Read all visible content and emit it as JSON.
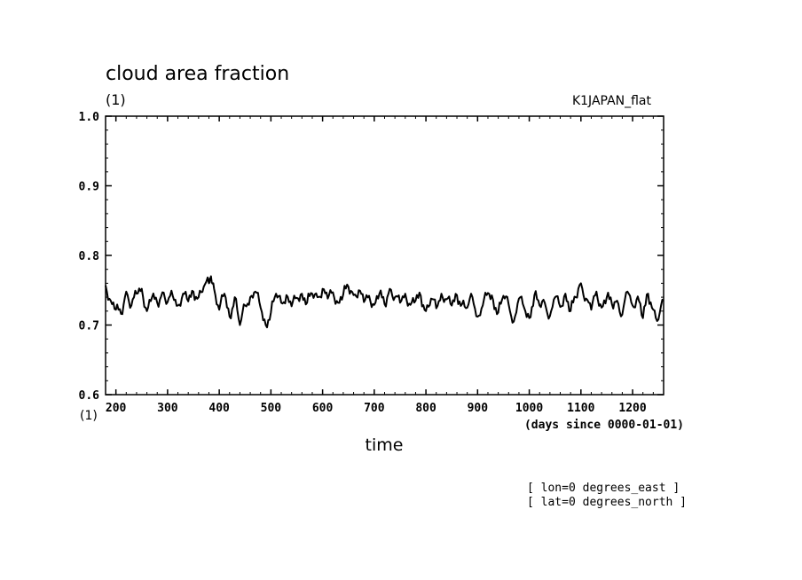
{
  "chart_data": {
    "type": "line",
    "title": "cloud area fraction",
    "y_unit": "(1)",
    "y_unit_bottom": "(1)",
    "dataset_label": "K1JAPAN_flat",
    "xlabel": "time",
    "x_units": "(days since 0000-01-01)",
    "xlim": [
      180,
      1260
    ],
    "ylim": [
      0.6,
      1.0
    ],
    "x_ticks": [
      200,
      300,
      400,
      500,
      600,
      700,
      800,
      900,
      1000,
      1100,
      1200
    ],
    "y_ticks": [
      "0.6",
      "0.7",
      "0.8",
      "0.9",
      "1.0"
    ],
    "grid": false,
    "series": [
      {
        "x": [
          180,
          190,
          200,
          210,
          220,
          230,
          240,
          250,
          260,
          270,
          280,
          290,
          300,
          310,
          320,
          330,
          340,
          350,
          360,
          370,
          380,
          384,
          390,
          400,
          410,
          420,
          430,
          440,
          450,
          460,
          470,
          480,
          490,
          500,
          510,
          520,
          530,
          540,
          550,
          560,
          570,
          580,
          590,
          600,
          610,
          620,
          630,
          640,
          650,
          660,
          670,
          680,
          690,
          700,
          710,
          720,
          730,
          740,
          750,
          760,
          770,
          780,
          790,
          800,
          810,
          820,
          830,
          840,
          850,
          860,
          870,
          880,
          890,
          900,
          910,
          920,
          930,
          940,
          950,
          960,
          970,
          980,
          990,
          1000,
          1010,
          1020,
          1030,
          1040,
          1050,
          1060,
          1070,
          1080,
          1090,
          1100,
          1110,
          1120,
          1130,
          1140,
          1150,
          1160,
          1170,
          1180,
          1190,
          1200,
          1210,
          1220,
          1230,
          1240,
          1250,
          1260
        ],
        "y": [
          0.757,
          0.735,
          0.722,
          0.716,
          0.748,
          0.728,
          0.745,
          0.752,
          0.72,
          0.74,
          0.732,
          0.747,
          0.733,
          0.742,
          0.728,
          0.745,
          0.734,
          0.748,
          0.74,
          0.755,
          0.76,
          0.77,
          0.752,
          0.722,
          0.745,
          0.712,
          0.74,
          0.7,
          0.728,
          0.74,
          0.748,
          0.725,
          0.7,
          0.718,
          0.745,
          0.732,
          0.743,
          0.727,
          0.739,
          0.745,
          0.732,
          0.745,
          0.74,
          0.752,
          0.738,
          0.747,
          0.732,
          0.744,
          0.755,
          0.743,
          0.75,
          0.733,
          0.742,
          0.729,
          0.745,
          0.73,
          0.752,
          0.74,
          0.732,
          0.745,
          0.729,
          0.735,
          0.742,
          0.72,
          0.738,
          0.724,
          0.745,
          0.737,
          0.728,
          0.743,
          0.73,
          0.725,
          0.74,
          0.712,
          0.728,
          0.746,
          0.736,
          0.718,
          0.742,
          0.73,
          0.705,
          0.738,
          0.725,
          0.71,
          0.743,
          0.728,
          0.732,
          0.713,
          0.74,
          0.726,
          0.745,
          0.72,
          0.74,
          0.76,
          0.738,
          0.722,
          0.748,
          0.725,
          0.74,
          0.73,
          0.735,
          0.715,
          0.748,
          0.728,
          0.741,
          0.71,
          0.745,
          0.722,
          0.708,
          0.735
        ]
      }
    ]
  },
  "footnotes": [
    "[ lon=0 degrees_east ]",
    "[ lat=0 degrees_north ]"
  ]
}
